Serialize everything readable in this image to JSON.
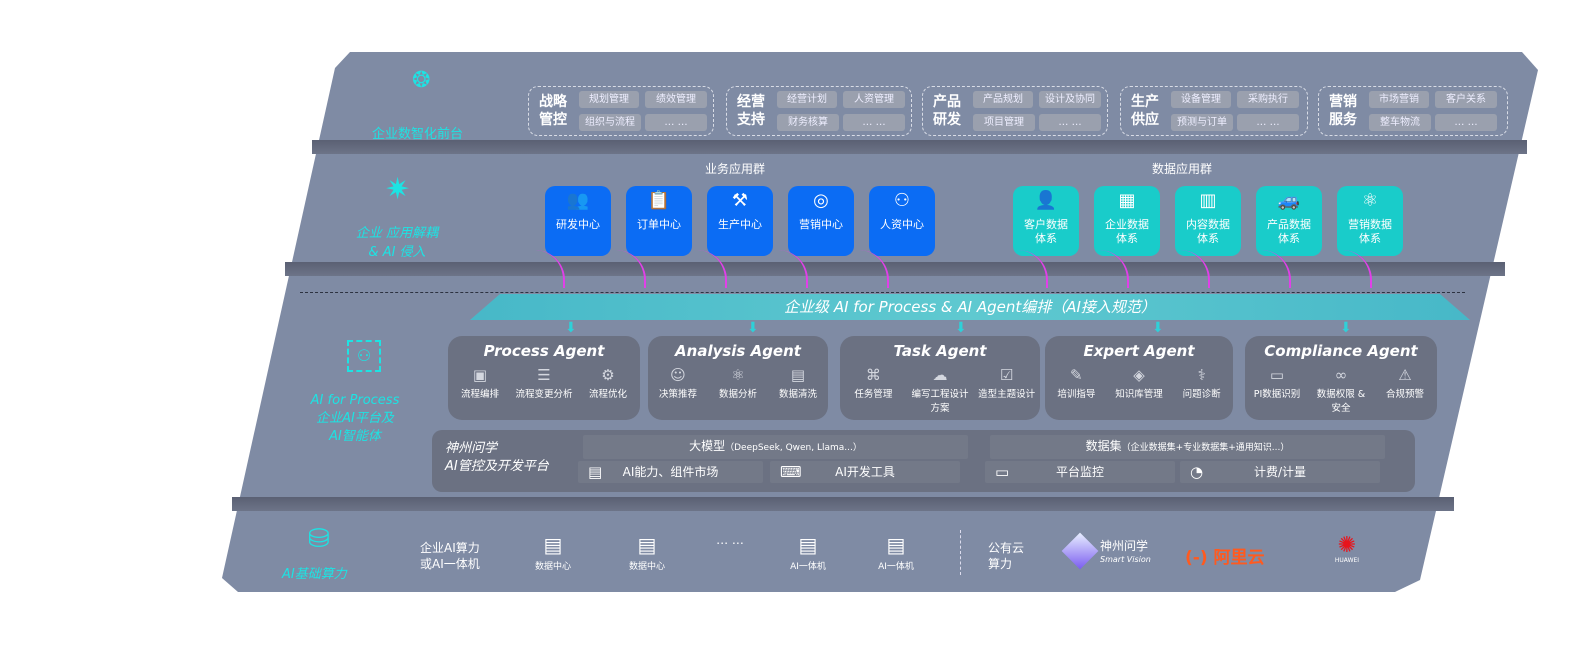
{
  "layers": {
    "front": {
      "label": "企业数智化前台",
      "icon": "brain-icon"
    },
    "apps": {
      "label_1": "企业 应用解耦",
      "label_2": "& AI 侵入",
      "icon": "molecule-icon"
    },
    "ai": {
      "label_1": "AI for Process",
      "label_2": "企业AI平台及",
      "label_3": "AI智能体",
      "icon": "user-scan-icon"
    },
    "compute": {
      "label": "AI基础算力",
      "icon": "database-icon"
    }
  },
  "front_groups": [
    {
      "title": "战略管控",
      "items": [
        "规划管理",
        "绩效管理",
        "组织与流程",
        "… …"
      ]
    },
    {
      "title": "经营支持",
      "items": [
        "经营计划",
        "人资管理",
        "财务核算",
        "… …"
      ]
    },
    {
      "title": "产品研发",
      "items": [
        "产品规划",
        "设计及协同",
        "项目管理",
        "… …"
      ]
    },
    {
      "title": "生产供应",
      "items": [
        "设备管理",
        "采购执行",
        "预测与订单",
        "… …"
      ]
    },
    {
      "title": "营销服务",
      "items": [
        "市场营销",
        "客户关系",
        "整车物流",
        "… …"
      ]
    }
  ],
  "business_apps": {
    "title": "业务应用群",
    "items": [
      {
        "label": "研发中心",
        "icon": "team-icon"
      },
      {
        "label": "订单中心",
        "icon": "clipboard-icon"
      },
      {
        "label": "生产中心",
        "icon": "factory-icon"
      },
      {
        "label": "营销中心",
        "icon": "target-icon"
      },
      {
        "label": "人资中心",
        "icon": "people-icon"
      }
    ]
  },
  "data_apps": {
    "title": "数据应用群",
    "items": [
      {
        "label_1": "客户数据",
        "label_2": "体系",
        "icon": "user-icon"
      },
      {
        "label_1": "企业数据",
        "label_2": "体系",
        "icon": "building-icon"
      },
      {
        "label_1": "内容数据",
        "label_2": "体系",
        "icon": "books-icon"
      },
      {
        "label_1": "产品数据",
        "label_2": "体系",
        "icon": "car-icon"
      },
      {
        "label_1": "营销数据",
        "label_2": "体系",
        "icon": "atom-icon"
      }
    ]
  },
  "orchestration": "企业级 AI for Process & AI Agent编排（AI接入规范）",
  "agents": [
    {
      "name": "Process Agent",
      "items": [
        {
          "label": "流程编排",
          "icon": "flow-chart-icon"
        },
        {
          "label": "流程变更分析",
          "icon": "list-icon"
        },
        {
          "label": "流程优化",
          "icon": "optimize-icon"
        }
      ]
    },
    {
      "name": "Analysis Agent",
      "items": [
        {
          "label": "决策推荐",
          "icon": "head-icon"
        },
        {
          "label": "数据分析",
          "icon": "atom-icon"
        },
        {
          "label": "数据清洗",
          "icon": "document-icon"
        }
      ]
    },
    {
      "name": "Task Agent",
      "items": [
        {
          "label": "任务管理",
          "icon": "network-icon"
        },
        {
          "label": "编写工程设计方案",
          "icon": "cloud-icon"
        },
        {
          "label": "造型主题设计",
          "icon": "checklist-icon"
        }
      ]
    },
    {
      "name": "Expert Agent",
      "items": [
        {
          "label": "培训指导",
          "icon": "tools-icon"
        },
        {
          "label": "知识库管理",
          "icon": "layers-icon"
        },
        {
          "label": "问题诊断",
          "icon": "diagnose-icon"
        }
      ]
    },
    {
      "name": "Compliance Agent",
      "items": [
        {
          "label": "PI数据识别",
          "icon": "id-card-icon"
        },
        {
          "label": "数据权限 & 安全",
          "icon": "link-icon"
        },
        {
          "label": "合规预警",
          "icon": "alert-icon"
        }
      ]
    }
  ],
  "platform": {
    "title_1": "神州问学",
    "title_2": "AI管控及开发平台",
    "model": "大模型",
    "model_note": "（DeepSeek, Qwen, Llama...）",
    "dataset": "数据集",
    "dataset_note": "（企业数据集+专业数据集+通用知识...）",
    "tools": [
      {
        "label": "AI能力、组件市场",
        "icon": "market-icon"
      },
      {
        "label": "AI开发工具",
        "icon": "dev-tool-icon"
      },
      {
        "label": "平台监控",
        "icon": "monitor-icon"
      },
      {
        "label": "计费/计量",
        "icon": "gauge-icon"
      }
    ]
  },
  "compute": {
    "enterprise_1": "企业AI算力",
    "enterprise_2": "或AI一体机",
    "servers": [
      {
        "label": "数据中心",
        "icon": "server-icon"
      },
      {
        "label": "数据中心",
        "icon": "server-icon"
      },
      {
        "label": "",
        "more": "… …"
      },
      {
        "label": "AI一体机",
        "icon": "server-icon"
      },
      {
        "label": "AI一体机",
        "icon": "server-icon"
      }
    ],
    "public_1": "公有云",
    "public_2": "算力",
    "vendors": [
      {
        "name": "神州问学",
        "sub": "Smart Vision"
      },
      {
        "name": "阿里云",
        "mark": "(-)"
      },
      {
        "name": "HUAWEI"
      }
    ]
  },
  "colors": {
    "panel": "#7f8ba4",
    "blue": "#0b6cf4",
    "teal": "#19ccca",
    "cyan": "#1de3e3",
    "agent": "#6b7182",
    "arrow": "#e040e8",
    "aliyun": "#ff5a1f",
    "huawei": "#e8141c"
  }
}
